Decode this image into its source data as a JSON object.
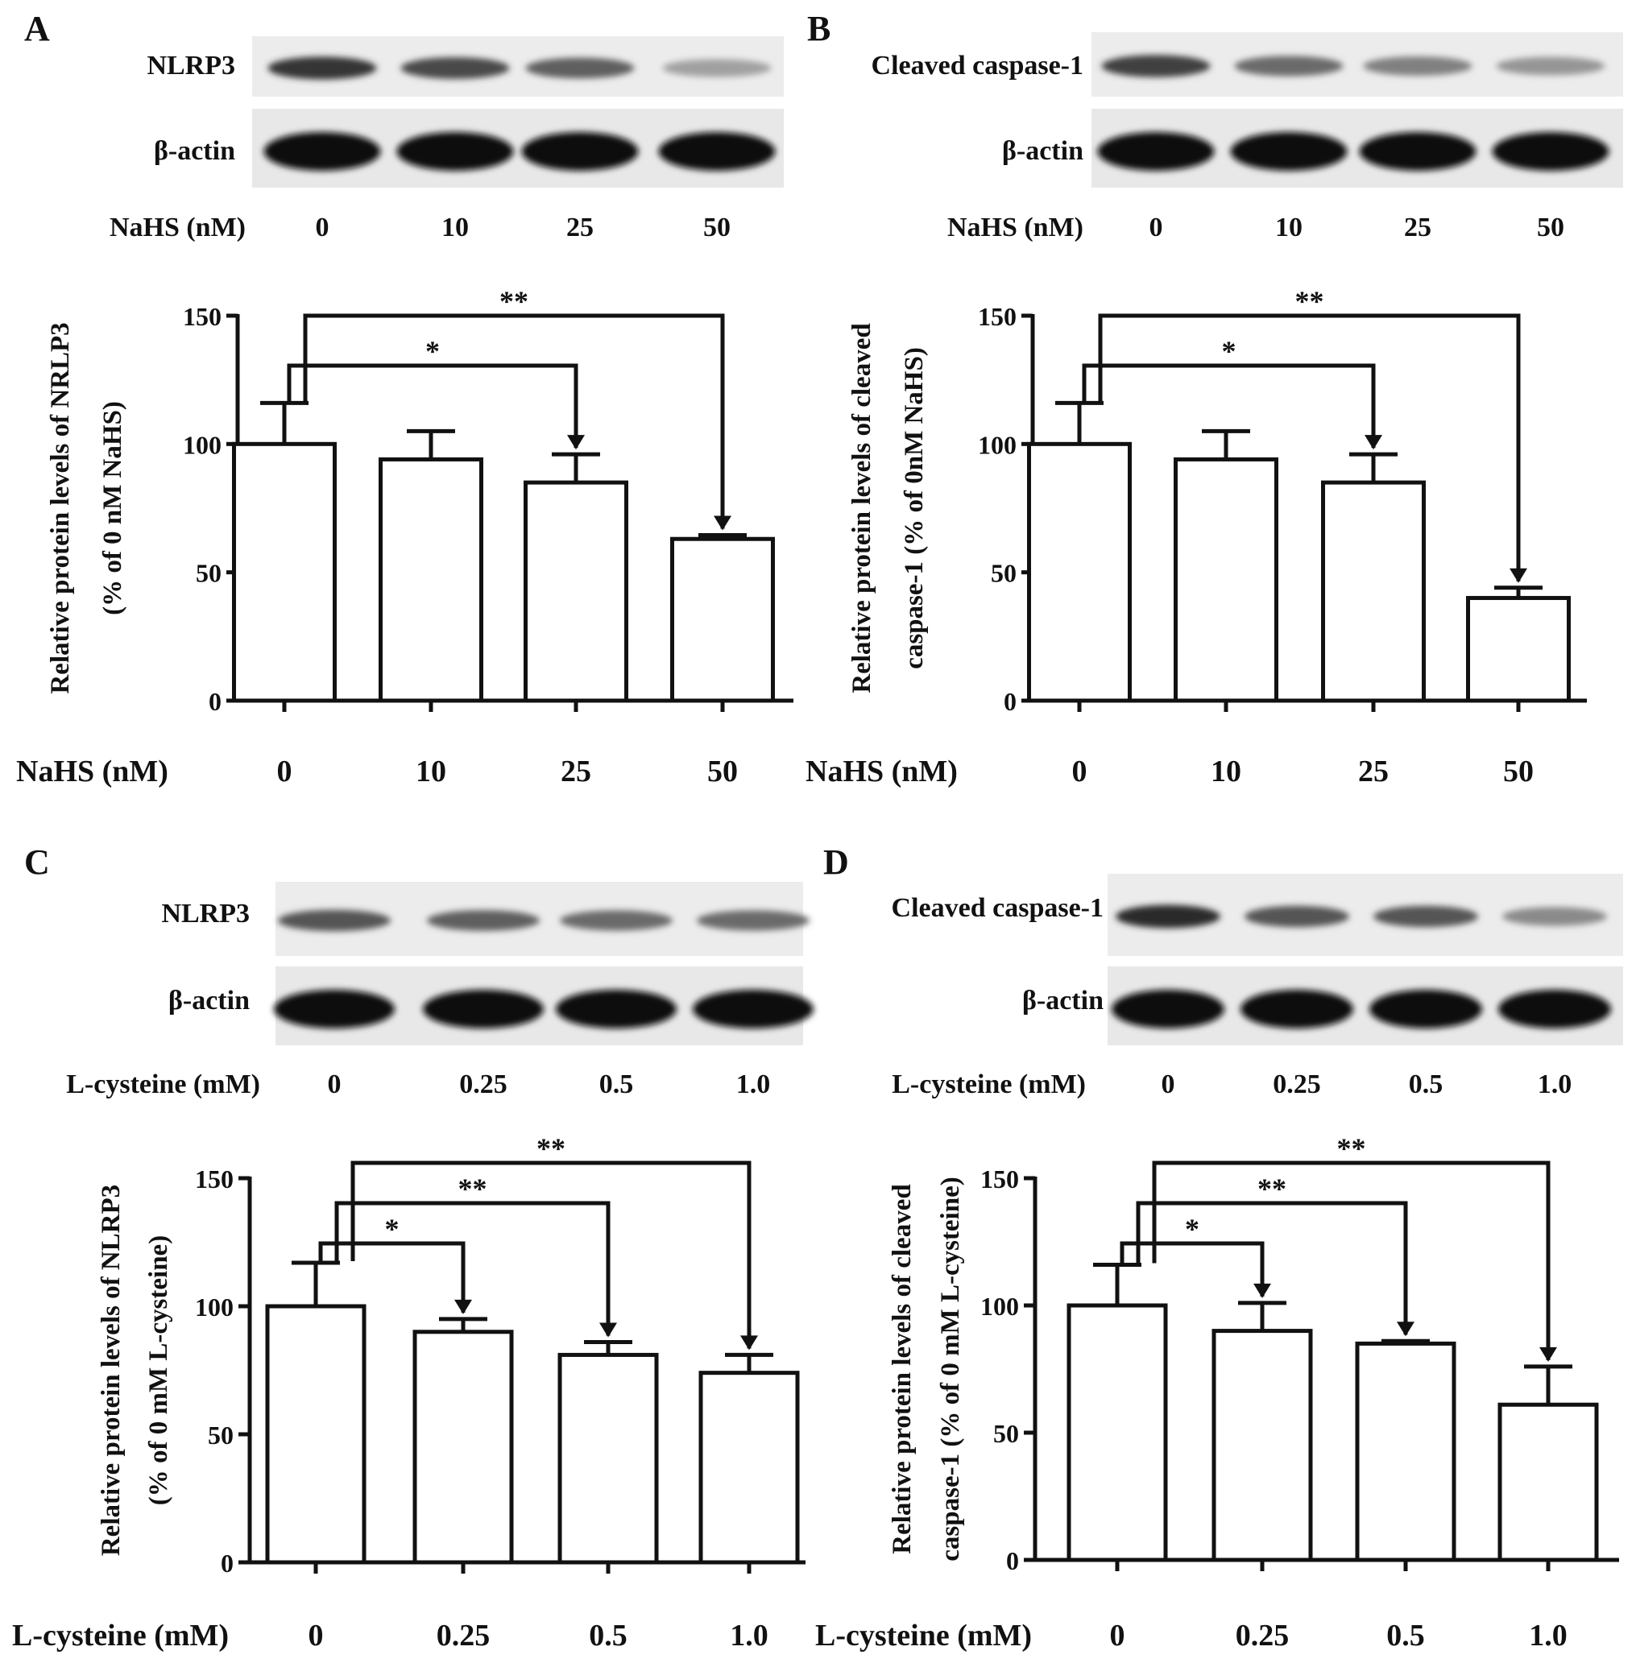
{
  "panels": [
    {
      "letter": "A",
      "blot": {
        "target_label": "NLRP3",
        "loading_label": "β-actin",
        "treatment_label": "NaHS (nM)",
        "lanes": [
          "0",
          "10",
          "25",
          "50"
        ],
        "target_intensity": [
          0.85,
          0.75,
          0.65,
          0.35
        ],
        "loading_intensity": [
          1.0,
          1.0,
          1.0,
          1.0
        ]
      },
      "chart": {
        "type": "bar",
        "categories": [
          "0",
          "10",
          "25",
          "50"
        ],
        "values": [
          100,
          94,
          85,
          63
        ],
        "errors": [
          16,
          11,
          11,
          1.5
        ],
        "ylim": [
          0,
          150
        ],
        "yticks": [
          "0",
          "50",
          "100",
          "150"
        ],
        "ylabel": [
          "Relative protein levels of  NRLP3",
          "(% of 0 nM NaHS)"
        ],
        "xlabel": "NaHS (nM)",
        "significance": [
          {
            "from": 0,
            "to": 2,
            "label": "*"
          },
          {
            "from": 0,
            "to": 3,
            "label": "**"
          }
        ]
      }
    },
    {
      "letter": "B",
      "blot": {
        "target_label": "Cleaved caspase-1",
        "loading_label": "β-actin",
        "treatment_label": "NaHS (nM)",
        "lanes": [
          "0",
          "10",
          "25",
          "50"
        ],
        "target_intensity": [
          0.8,
          0.6,
          0.5,
          0.4
        ],
        "loading_intensity": [
          1.0,
          1.0,
          1.0,
          1.0
        ]
      },
      "chart": {
        "type": "bar",
        "categories": [
          "0",
          "10",
          "25",
          "50"
        ],
        "values": [
          100,
          94,
          85,
          40
        ],
        "errors": [
          16,
          11,
          11,
          4
        ],
        "ylim": [
          0,
          150
        ],
        "yticks": [
          "0",
          "50",
          "100",
          "150"
        ],
        "ylabel": [
          "Relative protein levels of cleaved",
          "caspase-1 (% of 0nM NaHS)"
        ],
        "xlabel": "NaHS (nM)",
        "significance": [
          {
            "from": 0,
            "to": 2,
            "label": "*"
          },
          {
            "from": 0,
            "to": 3,
            "label": "**"
          }
        ]
      }
    },
    {
      "letter": "C",
      "blot": {
        "target_label": "NLRP3",
        "loading_label": "β-actin",
        "treatment_label": "L-cysteine (mM)",
        "lanes": [
          "0",
          "0.25",
          "0.5",
          "1.0"
        ],
        "target_intensity": [
          0.7,
          0.65,
          0.6,
          0.6
        ],
        "loading_intensity": [
          1.0,
          1.0,
          1.0,
          1.0
        ]
      },
      "chart": {
        "type": "bar",
        "categories": [
          "0",
          "0.25",
          "0.5",
          "1.0"
        ],
        "values": [
          100,
          90,
          81,
          74
        ],
        "errors": [
          17,
          5,
          5,
          7
        ],
        "ylim": [
          0,
          150
        ],
        "yticks": [
          "0",
          "50",
          "100",
          "150"
        ],
        "ylabel": [
          "Relative protein levels of  NLRP3",
          "(% of 0 mM  L-cysteine)"
        ],
        "xlabel": "L-cysteine (mM)",
        "significance": [
          {
            "from": 0,
            "to": 1,
            "label": "*"
          },
          {
            "from": 0,
            "to": 2,
            "label": "**"
          },
          {
            "from": 0,
            "to": 3,
            "label": "**"
          }
        ]
      }
    },
    {
      "letter": "D",
      "blot": {
        "target_label": "Cleaved caspase-1",
        "loading_label": "β-actin",
        "treatment_label": "L-cysteine (mM)",
        "lanes": [
          "0",
          "0.25",
          "0.5",
          "1.0"
        ],
        "target_intensity": [
          0.9,
          0.7,
          0.7,
          0.45
        ],
        "loading_intensity": [
          1.0,
          1.0,
          1.0,
          1.0
        ]
      },
      "chart": {
        "type": "bar",
        "categories": [
          "0",
          "0.25",
          "0.5",
          "1.0"
        ],
        "values": [
          100,
          90,
          85,
          61
        ],
        "errors": [
          16,
          11,
          1,
          15
        ],
        "ylim": [
          0,
          150
        ],
        "yticks": [
          "0",
          "50",
          "100",
          "150"
        ],
        "ylabel": [
          "Relative protein levels of cleaved",
          "caspase-1 (% of 0 mM  L-cysteine)"
        ],
        "xlabel": "L-cysteine (mM)",
        "significance": [
          {
            "from": 0,
            "to": 1,
            "label": "*"
          },
          {
            "from": 0,
            "to": 2,
            "label": "**"
          },
          {
            "from": 0,
            "to": 3,
            "label": "**"
          }
        ]
      }
    }
  ],
  "chart_data": [
    {
      "type": "bar",
      "categories": [
        "0",
        "10",
        "25",
        "50"
      ],
      "values": [
        100,
        94,
        85,
        63
      ],
      "errors": [
        16,
        11,
        11,
        1.5
      ],
      "xlabel": "NaHS (nM)",
      "ylabel": "Relative protein levels of  NRLP3 (% of 0 nM NaHS)",
      "ylim": [
        0,
        150
      ]
    },
    {
      "type": "bar",
      "categories": [
        "0",
        "10",
        "25",
        "50"
      ],
      "values": [
        100,
        94,
        85,
        40
      ],
      "errors": [
        16,
        11,
        11,
        4
      ],
      "xlabel": "NaHS (nM)",
      "ylabel": "Relative protein levels of cleaved caspase-1 (% of 0nM NaHS)",
      "ylim": [
        0,
        150
      ]
    },
    {
      "type": "bar",
      "categories": [
        "0",
        "0.25",
        "0.5",
        "1.0"
      ],
      "values": [
        100,
        90,
        81,
        74
      ],
      "errors": [
        17,
        5,
        5,
        7
      ],
      "xlabel": "L-cysteine (mM)",
      "ylabel": "Relative protein levels of  NLRP3 (% of 0 mM  L-cysteine)",
      "ylim": [
        0,
        150
      ]
    },
    {
      "type": "bar",
      "categories": [
        "0",
        "0.25",
        "0.5",
        "1.0"
      ],
      "values": [
        100,
        90,
        85,
        61
      ],
      "errors": [
        16,
        11,
        1,
        15
      ],
      "xlabel": "L-cysteine (mM)",
      "ylabel": "Relative protein levels of cleaved caspase-1 (% of 0 mM  L-cysteine)",
      "ylim": [
        0,
        150
      ]
    }
  ]
}
